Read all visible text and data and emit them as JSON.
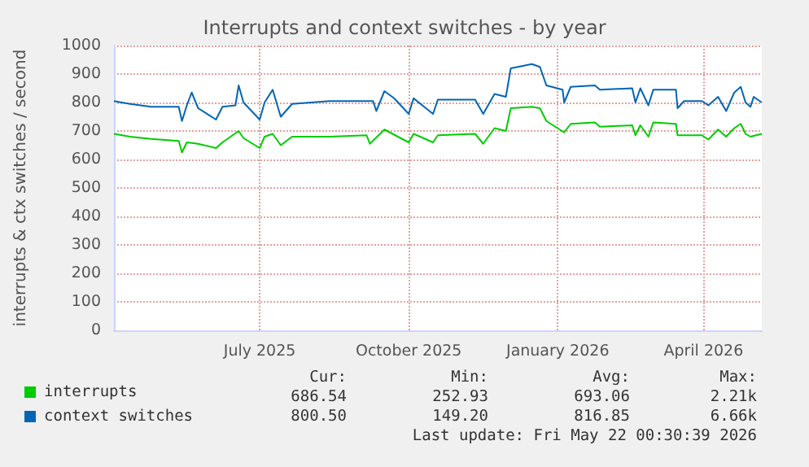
{
  "chart_data": {
    "type": "line",
    "title": "Interrupts and context switches - by year",
    "ylabel": "interrupts & ctx switches / second",
    "xlim": [
      "2025-04-17",
      "2026-05-22"
    ],
    "xticks": [
      {
        "value": "2025-07-16",
        "label": "July 2025"
      },
      {
        "value": "2025-10-16",
        "label": "October 2025"
      },
      {
        "value": "2026-01-16",
        "label": "January 2026"
      },
      {
        "value": "2026-04-16",
        "label": "April 2026"
      }
    ],
    "ylim": [
      0,
      1000
    ],
    "yticks": [
      0,
      100,
      200,
      300,
      400,
      500,
      600,
      700,
      800,
      900,
      1000
    ],
    "grid": true,
    "legend": "bottom left",
    "marker": "none",
    "line_style": "solid",
    "series": [
      {
        "name": "interrupts",
        "color": "#00cc00",
        "x": [
          "2025-04-17",
          "2025-04-27",
          "2025-05-10",
          "2025-05-27",
          "2025-05-29",
          "2025-06-01",
          "2025-06-08",
          "2025-06-19",
          "2025-06-23",
          "2025-07-03",
          "2025-07-06",
          "2025-07-16",
          "2025-07-19",
          "2025-07-24",
          "2025-07-29",
          "2025-08-05",
          "2025-08-28",
          "2025-09-20",
          "2025-09-22",
          "2025-10-01",
          "2025-10-16",
          "2025-10-19",
          "2025-10-31",
          "2025-11-03",
          "2025-11-26",
          "2025-12-01",
          "2025-12-08",
          "2025-12-15",
          "2025-12-18",
          "2025-12-31",
          "2026-01-05",
          "2026-01-09",
          "2026-01-20",
          "2026-01-24",
          "2026-02-08",
          "2026-02-11",
          "2026-03-03",
          "2026-03-05",
          "2026-03-08",
          "2026-03-13",
          "2026-03-16",
          "2026-03-30",
          "2026-03-31",
          "2026-04-15",
          "2026-04-19",
          "2026-04-25",
          "2026-04-30",
          "2026-05-05",
          "2026-05-09",
          "2026-05-12",
          "2026-05-15",
          "2026-05-22"
        ],
        "values": [
          690,
          680,
          672,
          665,
          625,
          660,
          655,
          640,
          660,
          700,
          675,
          640,
          680,
          690,
          650,
          680,
          680,
          685,
          655,
          705,
          660,
          690,
          660,
          685,
          690,
          655,
          710,
          700,
          780,
          785,
          780,
          735,
          695,
          725,
          730,
          715,
          720,
          685,
          720,
          680,
          730,
          725,
          685,
          685,
          670,
          705,
          680,
          710,
          725,
          690,
          680,
          690
        ]
      },
      {
        "name": "context switches",
        "color": "#0066b3",
        "x": [
          "2025-04-17",
          "2025-04-27",
          "2025-05-10",
          "2025-05-27",
          "2025-05-29",
          "2025-06-01",
          "2025-06-04",
          "2025-06-08",
          "2025-06-19",
          "2025-06-23",
          "2025-07-01",
          "2025-07-03",
          "2025-07-06",
          "2025-07-16",
          "2025-07-19",
          "2025-07-24",
          "2025-07-29",
          "2025-08-05",
          "2025-08-28",
          "2025-09-14",
          "2025-09-24",
          "2025-09-26",
          "2025-10-01",
          "2025-10-07",
          "2025-10-16",
          "2025-10-19",
          "2025-10-31",
          "2025-11-03",
          "2025-11-26",
          "2025-12-01",
          "2025-12-08",
          "2025-12-15",
          "2025-12-18",
          "2025-12-31",
          "2026-01-05",
          "2026-01-09",
          "2026-01-19",
          "2026-01-20",
          "2026-01-24",
          "2026-02-08",
          "2026-02-11",
          "2026-03-03",
          "2026-03-05",
          "2026-03-08",
          "2026-03-13",
          "2026-03-16",
          "2026-03-30",
          "2026-03-31",
          "2026-04-04",
          "2026-04-15",
          "2026-04-19",
          "2026-04-25",
          "2026-04-30",
          "2026-05-05",
          "2026-05-09",
          "2026-05-12",
          "2026-05-15",
          "2026-05-17",
          "2026-05-22"
        ],
        "values": [
          805,
          795,
          785,
          785,
          735,
          790,
          835,
          780,
          740,
          785,
          790,
          860,
          800,
          740,
          800,
          845,
          750,
          795,
          805,
          805,
          805,
          770,
          840,
          815,
          760,
          815,
          760,
          810,
          810,
          760,
          830,
          820,
          920,
          935,
          925,
          860,
          845,
          800,
          855,
          860,
          845,
          850,
          800,
          850,
          790,
          845,
          845,
          780,
          805,
          805,
          790,
          820,
          770,
          835,
          855,
          800,
          785,
          820,
          800
        ]
      }
    ],
    "annotations": [
      "Cur:",
      "Min:",
      "Avg:",
      "Max:",
      "686.54",
      "252.93",
      "693.06",
      "2.21k",
      "800.50",
      "149.20",
      "816.85",
      "6.66k",
      "Last update: Fri May 22 00:30:39 2026"
    ]
  }
}
